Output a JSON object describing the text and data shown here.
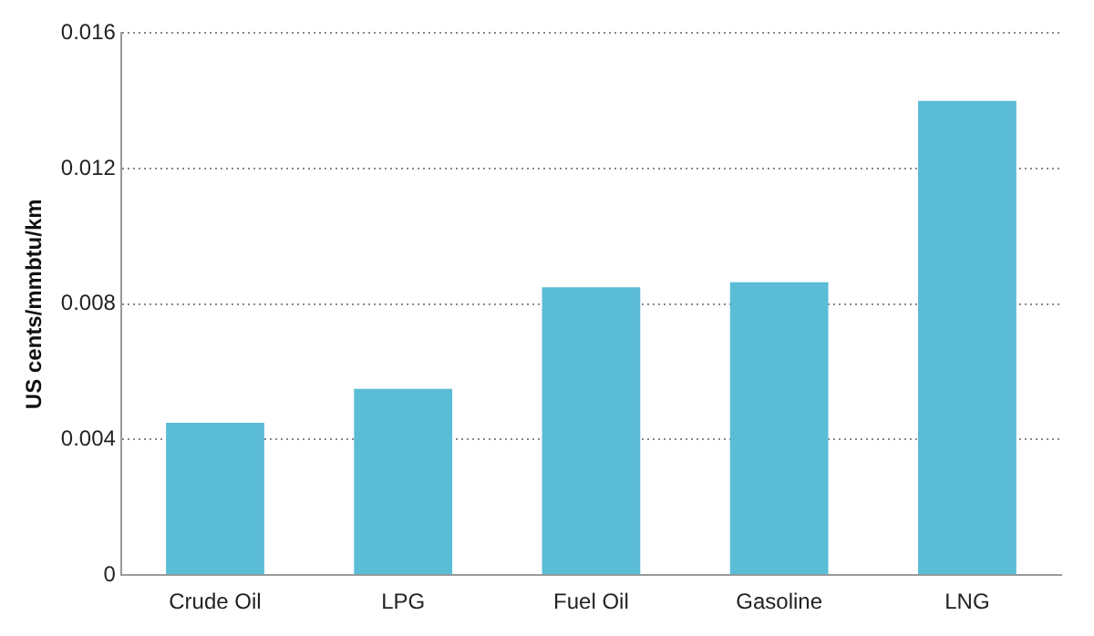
{
  "chart_data": {
    "type": "bar",
    "ylabel": "US cents/mmbtu/km",
    "categories": [
      "Crude Oil",
      "LPG",
      "Fuel Oil",
      "Gasoline",
      "LNG"
    ],
    "values": [
      0.0045,
      0.0055,
      0.0085,
      0.00865,
      0.014
    ],
    "color": "#5bbcd6",
    "ylim": [
      0,
      0.016
    ],
    "yticks": [
      0,
      0.004,
      0.008,
      0.012,
      0.016
    ],
    "grid": "y",
    "legend": false
  }
}
